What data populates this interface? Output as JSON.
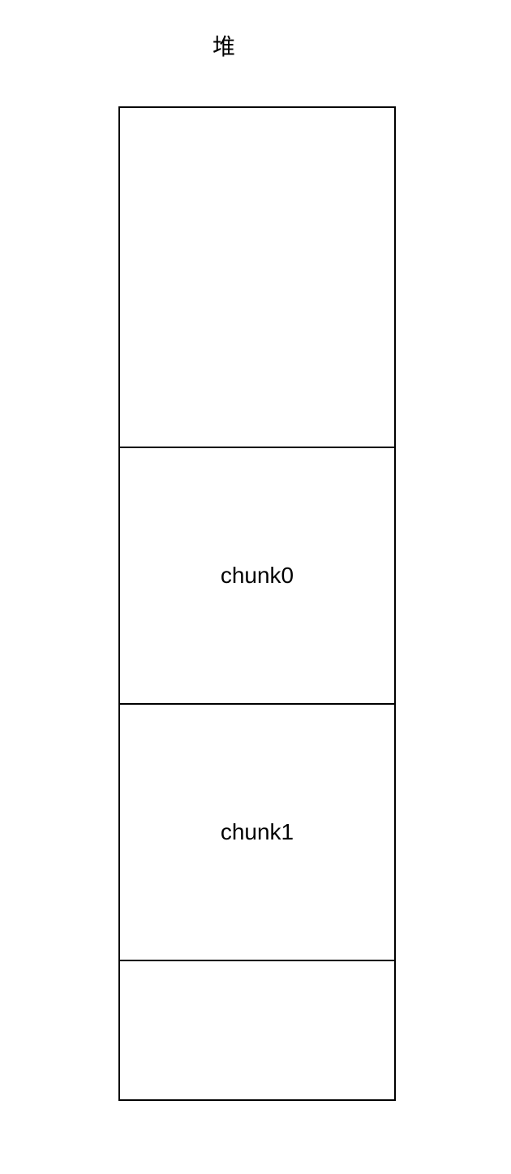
{
  "title": "堆",
  "segments": [
    {
      "label": ""
    },
    {
      "label": "chunk0"
    },
    {
      "label": "chunk1"
    },
    {
      "label": ""
    }
  ]
}
